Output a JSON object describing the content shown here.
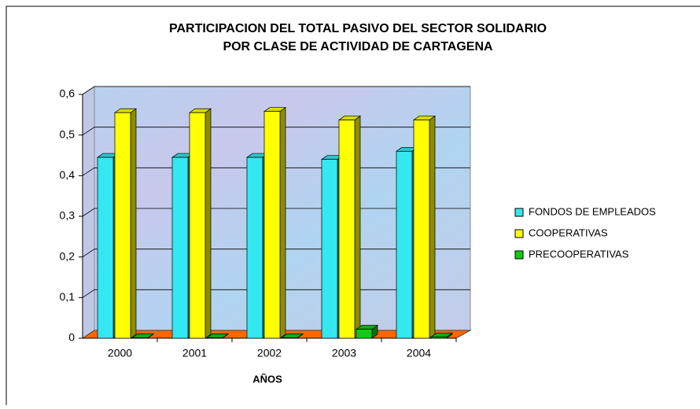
{
  "chart_data": {
    "type": "bar3d",
    "title": [
      "PARTICIPACION DEL TOTAL PASIVO DEL SECTOR SOLIDARIO",
      "POR CLASE DE ACTIVIDAD DE CARTAGENA"
    ],
    "x_label": "AÑOS",
    "categories": [
      "2000",
      "2001",
      "2002",
      "2003",
      "2004"
    ],
    "series": [
      {
        "name": "FONDOS DE EMPLEADOS",
        "color": "#33e8f0",
        "values": [
          0.445,
          0.445,
          0.445,
          0.44,
          0.46
        ]
      },
      {
        "name": "COOPERATIVAS",
        "color": "#ffff00",
        "values": [
          0.555,
          0.555,
          0.558,
          0.537,
          0.537
        ]
      },
      {
        "name": "PRECOOPERATIVAS",
        "color": "#11cc11",
        "values": [
          0.001,
          0.001,
          0.001,
          0.022,
          0.003
        ]
      }
    ],
    "ylim": [
      0,
      0.6
    ],
    "yticks": [
      0,
      {
        "value": 0.1,
        "label": "0,1"
      },
      {
        "value": 0.2,
        "label": "0,2"
      },
      {
        "value": 0.3,
        "label": "0,3"
      },
      {
        "value": 0.4,
        "label": "0,4"
      },
      {
        "value": 0.5,
        "label": "0,5"
      },
      {
        "value": 0.6,
        "label": "0,6"
      }
    ],
    "grid": true,
    "legend": "right"
  }
}
